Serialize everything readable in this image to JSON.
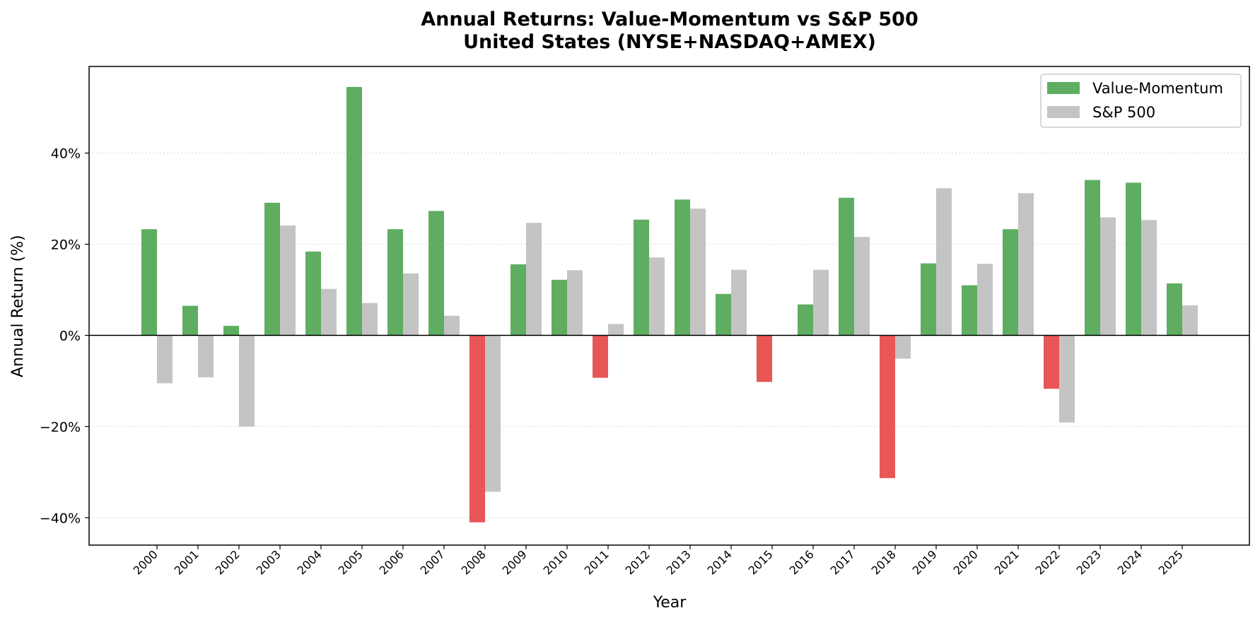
{
  "chart_data": {
    "type": "bar",
    "title": "Annual Returns: Value-Momentum vs S&P 500",
    "subtitle": "United States (NYSE+NASDAQ+AMEX)",
    "xlabel": "Year",
    "ylabel": "Annual Return (%)",
    "ylim": [
      -46,
      59
    ],
    "yticks": [
      -40,
      -20,
      0,
      20,
      40
    ],
    "ytick_labels": [
      "−40%",
      "−20%",
      "0%",
      "20%",
      "40%"
    ],
    "grid": "horizontal dotted",
    "legend_position": "top-right",
    "categories": [
      "2000",
      "2001",
      "2002",
      "2003",
      "2004",
      "2005",
      "2006",
      "2007",
      "2008",
      "2009",
      "2010",
      "2011",
      "2012",
      "2013",
      "2014",
      "2015",
      "2016",
      "2017",
      "2018",
      "2019",
      "2020",
      "2021",
      "2022",
      "2023",
      "2024",
      "2025"
    ],
    "series": [
      {
        "name": "Value-Momentum",
        "color": "#5fad61",
        "negative_color": "#e85656",
        "values": [
          23.3,
          6.5,
          2.1,
          29.1,
          18.4,
          54.5,
          23.3,
          27.3,
          -41.0,
          15.6,
          12.2,
          -9.3,
          25.4,
          29.8,
          9.1,
          -10.2,
          6.8,
          30.2,
          -31.3,
          15.8,
          11.0,
          23.3,
          -11.7,
          34.1,
          33.5,
          11.4
        ]
      },
      {
        "name": "S&P 500",
        "color": "#c4c4c4",
        "values": [
          -10.5,
          -9.2,
          -20.0,
          24.1,
          10.2,
          7.1,
          13.6,
          4.3,
          -34.3,
          24.7,
          14.3,
          2.5,
          17.1,
          27.8,
          14.4,
          0.0,
          14.4,
          21.6,
          -5.1,
          32.3,
          15.7,
          31.2,
          -19.1,
          25.9,
          25.3,
          6.6
        ]
      }
    ]
  }
}
